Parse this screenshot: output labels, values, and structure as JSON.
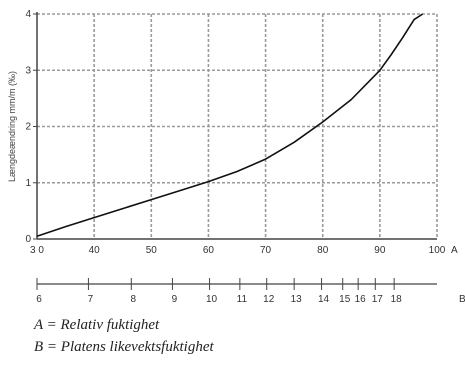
{
  "chart_data": {
    "type": "line",
    "ylabel": "Længdeændring mm/m (‰)",
    "x_axis_A": {
      "label": "A",
      "xlim": [
        30,
        100
      ],
      "ticks": [
        30,
        40,
        50,
        60,
        70,
        80,
        90,
        100
      ],
      "tick_labels": [
        "3 0",
        "40",
        "50",
        "60",
        "70",
        "80",
        "90",
        "100"
      ]
    },
    "x_axis_B": {
      "label": "B",
      "ticks": [
        6,
        7,
        8,
        9,
        10,
        11,
        12,
        13,
        14,
        15,
        16,
        17,
        18
      ],
      "tick_labels": [
        "6",
        "7",
        "8",
        "9",
        "10",
        "11",
        "12",
        "13",
        "14",
        "15",
        "16",
        "17",
        "18"
      ],
      "tick_positions_A": [
        30,
        39,
        46.5,
        53.7,
        60.2,
        65.5,
        70.2,
        75,
        79.8,
        83.5,
        86.2,
        89.2,
        92.5
      ]
    },
    "ylim": [
      0,
      4
    ],
    "y_ticks": [
      0,
      1,
      2,
      3,
      4
    ],
    "grid": true,
    "series": [
      {
        "x": [
          30,
          35,
          40,
          45,
          50,
          55,
          60,
          65,
          70,
          75,
          80,
          85,
          90,
          92,
          94,
          96,
          97.5
        ],
        "y": [
          0.05,
          0.22,
          0.38,
          0.54,
          0.7,
          0.86,
          1.02,
          1.2,
          1.42,
          1.72,
          2.08,
          2.48,
          3.0,
          3.28,
          3.58,
          3.9,
          4.0
        ]
      }
    ]
  },
  "legend": {
    "line_a": "A = Relativ fuktighet",
    "line_b": "B = Platens likevektsfuktighet"
  },
  "colors": {
    "grid": "#9a9a9a",
    "axis": "#444444",
    "curve": "#111111"
  }
}
